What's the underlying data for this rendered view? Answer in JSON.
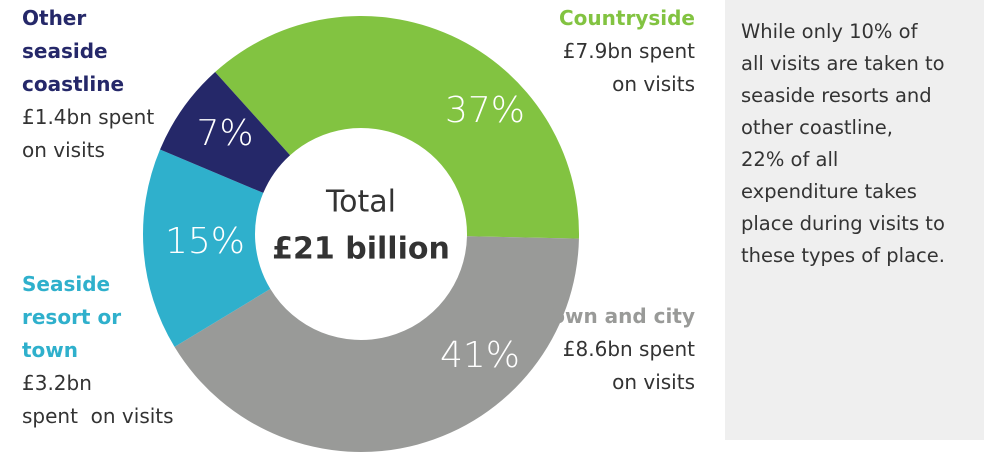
{
  "chart_data": {
    "type": "pie",
    "categories": [
      "Countryside",
      "Town and city",
      "Seaside resort or town",
      "Other seaside coastline"
    ],
    "descriptions": [
      [
        "£7.9bn spent",
        "on visits"
      ],
      [
        "£8.6bn spent",
        "on visits"
      ],
      [
        "£3.2bn",
        "spent  on visits"
      ],
      [
        "£1.4bn spent",
        "on visits"
      ]
    ],
    "values": [
      37,
      41,
      15,
      7
    ],
    "value_labels": [
      "37%",
      "41%",
      "15%",
      "7%"
    ],
    "colors": [
      "#82c341",
      "#999a98",
      "#2fb0cc",
      "#252869"
    ],
    "center_text": "Total",
    "center_total": "£21 billion"
  },
  "sidebar": {
    "lines": [
      "While only 10% of",
      "all visits are taken to",
      "seaside resorts and",
      "other coastline,",
      "22% of all",
      "expenditure takes",
      "place during visits to",
      "these types of place."
    ]
  }
}
